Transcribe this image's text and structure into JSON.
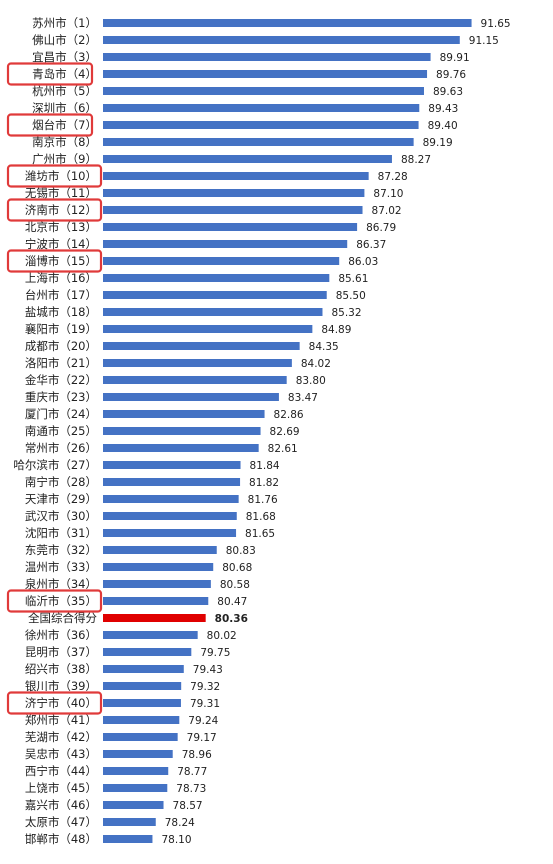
{
  "chart_data": {
    "type": "bar",
    "orientation": "horizontal",
    "title": "",
    "xlabel": "",
    "ylabel": "",
    "xlim": [
      76,
      92.5
    ],
    "grid": false,
    "legend": "none",
    "colors": {
      "bar": "#4472C4",
      "highlight_bar": "#E00000",
      "box": "#E03A3A"
    },
    "categories": [
      "苏州市（1）",
      "佛山市（2）",
      "宜昌市（3）",
      "青岛市（4）",
      "杭州市（5）",
      "深圳市（6）",
      "烟台市（7）",
      "南京市（8）",
      "广州市（9）",
      "潍坊市（10）",
      "无锡市（11）",
      "济南市（12）",
      "北京市（13）",
      "宁波市（14）",
      "淄博市（15）",
      "上海市（16）",
      "台州市（17）",
      "盐城市（18）",
      "襄阳市（19）",
      "成都市（20）",
      "洛阳市（21）",
      "金华市（22）",
      "重庆市（23）",
      "厦门市（24）",
      "南通市（25）",
      "常州市（26）",
      "哈尔滨市（27）",
      "南宁市（28）",
      "天津市（29）",
      "武汉市（30）",
      "沈阳市（31）",
      "东莞市（32）",
      "温州市（33）",
      "泉州市（34）",
      "临沂市（35）",
      "全国综合得分",
      "徐州市（36）",
      "昆明市（37）",
      "绍兴市（38）",
      "银川市（39）",
      "济宁市（40）",
      "郑州市（41）",
      "芜湖市（42）",
      "吴忠市（43）",
      "西宁市（44）",
      "上饶市（45）",
      "嘉兴市（46）",
      "太原市（47）",
      "邯郸市（48）"
    ],
    "values": [
      91.65,
      91.15,
      89.91,
      89.76,
      89.63,
      89.43,
      89.4,
      89.19,
      88.27,
      87.28,
      87.1,
      87.02,
      86.79,
      86.37,
      86.03,
      85.61,
      85.5,
      85.32,
      84.89,
      84.35,
      84.02,
      83.8,
      83.47,
      82.86,
      82.69,
      82.61,
      81.84,
      81.82,
      81.76,
      81.68,
      81.65,
      80.83,
      80.68,
      80.58,
      80.47,
      80.36,
      80.02,
      79.75,
      79.43,
      79.32,
      79.31,
      79.24,
      79.17,
      78.96,
      78.77,
      78.73,
      78.57,
      78.24,
      78.1
    ],
    "highlighted_category": "全国综合得分",
    "boxed_categories": [
      "青岛市（4）",
      "烟台市（7）",
      "潍坊市（10）",
      "济南市（12）",
      "淄博市（15）",
      "临沂市（35）",
      "济宁市（40）"
    ]
  }
}
